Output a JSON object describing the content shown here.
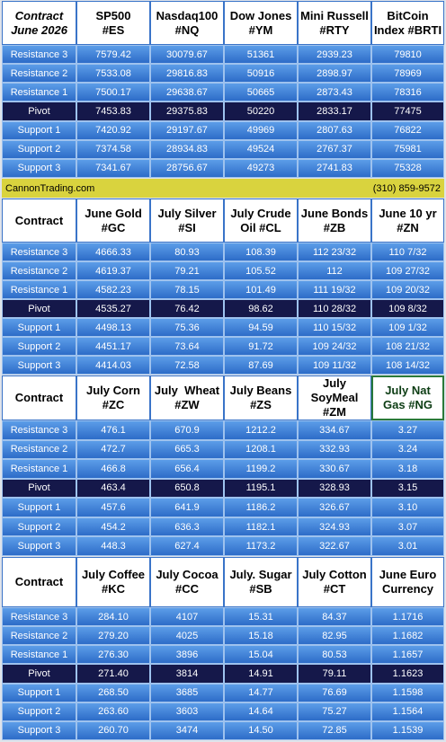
{
  "sections": [
    {
      "header": [
        [
          "Contract",
          "June 2026"
        ],
        [
          "SP500",
          "#ES"
        ],
        [
          "Nasdaq100",
          "#NQ"
        ],
        [
          "Dow Jones",
          "#YM"
        ],
        [
          "Mini Russell",
          "#RTY"
        ],
        [
          "BitCoin",
          "Index #BRTI"
        ]
      ],
      "rows": [
        [
          "Resistance 3",
          "7579.42",
          "30079.67",
          "51361",
          "2939.23",
          "79810"
        ],
        [
          "Resistance 2",
          "7533.08",
          "29816.83",
          "50916",
          "2898.97",
          "78969"
        ],
        [
          "Resistance 1",
          "7500.17",
          "29638.67",
          "50665",
          "2873.43",
          "78316"
        ],
        [
          "Pivot",
          "7453.83",
          "29375.83",
          "50220",
          "2833.17",
          "77475"
        ],
        [
          "Support 1",
          "7420.92",
          "29197.67",
          "49969",
          "2807.63",
          "76822"
        ],
        [
          "Support 2",
          "7374.58",
          "28934.83",
          "49524",
          "2767.37",
          "75981"
        ],
        [
          "Support 3",
          "7341.67",
          "28756.67",
          "49273",
          "2741.83",
          "75328"
        ]
      ]
    },
    {
      "header": [
        [
          "Contract"
        ],
        [
          "June Gold",
          "#GC"
        ],
        [
          "July Silver",
          "#SI"
        ],
        [
          "July Crude",
          "Oil #CL"
        ],
        [
          "June Bonds",
          "#ZB"
        ],
        [
          "June 10 yr",
          "#ZN"
        ]
      ],
      "rows": [
        [
          "Resistance 3",
          "4666.33",
          "80.93",
          "108.39",
          "112 23/32",
          "110 7/32"
        ],
        [
          "Resistance 2",
          "4619.37",
          "79.21",
          "105.52",
          "112",
          "109 27/32"
        ],
        [
          "Resistance 1",
          "4582.23",
          "78.15",
          "101.49",
          "111 19/32",
          "109 20/32"
        ],
        [
          "Pivot",
          "4535.27",
          "76.42",
          "98.62",
          "110 28/32",
          "109 8/32"
        ],
        [
          "Support 1",
          "4498.13",
          "75.36",
          "94.59",
          "110 15/32",
          "109 1/32"
        ],
        [
          "Support 2",
          "4451.17",
          "73.64",
          "91.72",
          "109 24/32",
          "108 21/32"
        ],
        [
          "Support 3",
          "4414.03",
          "72.58",
          "87.69",
          "109 11/32",
          "108 14/32"
        ]
      ]
    },
    {
      "header": [
        [
          "Contract"
        ],
        [
          "July Corn",
          "#ZC"
        ],
        [
          "July  Wheat",
          "#ZW"
        ],
        [
          "July Beans",
          "#ZS"
        ],
        [
          "July",
          "SoyMeal",
          "#ZM"
        ],
        [
          "July Nat",
          "Gas #NG"
        ]
      ],
      "rows": [
        [
          "Resistance 3",
          "476.1",
          "670.9",
          "1212.2",
          "334.67",
          "3.27"
        ],
        [
          "Resistance 2",
          "472.7",
          "665.3",
          "1208.1",
          "332.93",
          "3.24"
        ],
        [
          "Resistance 1",
          "466.8",
          "656.4",
          "1199.2",
          "330.67",
          "3.18"
        ],
        [
          "Pivot",
          "463.4",
          "650.8",
          "1195.1",
          "328.93",
          "3.15"
        ],
        [
          "Support 1",
          "457.6",
          "641.9",
          "1186.2",
          "326.67",
          "3.10"
        ],
        [
          "Support 2",
          "454.2",
          "636.3",
          "1182.1",
          "324.93",
          "3.07"
        ],
        [
          "Support 3",
          "448.3",
          "627.4",
          "1173.2",
          "322.67",
          "3.01"
        ]
      ]
    },
    {
      "header": [
        [
          "Contract"
        ],
        [
          "July Coffee",
          "#KC"
        ],
        [
          "July Cocoa",
          "#CC"
        ],
        [
          "July. Sugar",
          "#SB"
        ],
        [
          "July Cotton",
          "#CT"
        ],
        [
          "June Euro",
          "Currency"
        ]
      ],
      "rows": [
        [
          "Resistance 3",
          "284.10",
          "4107",
          "15.31",
          "84.37",
          "1.1716"
        ],
        [
          "Resistance 2",
          "279.20",
          "4025",
          "15.18",
          "82.95",
          "1.1682"
        ],
        [
          "Resistance 1",
          "276.30",
          "3896",
          "15.04",
          "80.53",
          "1.1657"
        ],
        [
          "Pivot",
          "271.40",
          "3814",
          "14.91",
          "79.11",
          "1.1623"
        ],
        [
          "Support 1",
          "268.50",
          "3685",
          "14.77",
          "76.69",
          "1.1598"
        ],
        [
          "Support 2",
          "263.60",
          "3603",
          "14.64",
          "75.27",
          "1.1564"
        ],
        [
          "Support 3",
          "260.70",
          "3474",
          "14.50",
          "72.85",
          "1.1539"
        ]
      ]
    }
  ],
  "banner": {
    "site": "CannonTrading.com",
    "phone": "(310) 859-9572"
  }
}
